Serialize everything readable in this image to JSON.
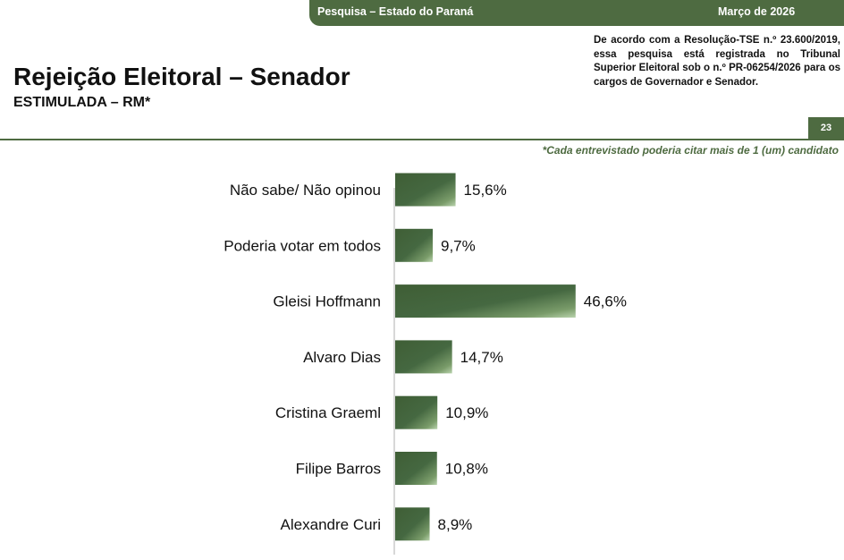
{
  "header": {
    "survey_label": "Pesquisa – Estado do Paraná",
    "date_label": "Março de 2026",
    "registration_notice": "De acordo com a Resolução-TSE n.º 23.600/2019, essa pesquisa está registrada no Tribunal Superior Eleitoral sob o n.º PR-06254/2026 para os cargos de Governador e Senador.",
    "page_number": "23"
  },
  "colors": {
    "accent": "#4e6b41",
    "bar_dark": "#3f5e35",
    "bar_light": "#b9d3ad"
  },
  "chart_data": {
    "type": "bar",
    "orientation": "horizontal",
    "title": "Rejeição Eleitoral – Senador",
    "subtitle": "ESTIMULADA – RM*",
    "footnote": "*Cada entrevistado poderia citar mais de 1 (um) candidato",
    "categories": [
      "Não sabe/ Não opinou",
      "Poderia votar em todos",
      "Gleisi Hoffmann",
      "Alvaro Dias",
      "Cristina Graeml",
      "Filipe Barros",
      "Alexandre Curi"
    ],
    "values": [
      15.6,
      9.7,
      46.6,
      14.7,
      10.9,
      10.8,
      8.9
    ],
    "value_labels": [
      "15,6%",
      "9,7%",
      "46,6%",
      "14,7%",
      "10,9%",
      "10,8%",
      "8,9%"
    ],
    "unit": "%",
    "xlim": [
      0,
      100
    ],
    "grid": false,
    "legend": "none"
  }
}
